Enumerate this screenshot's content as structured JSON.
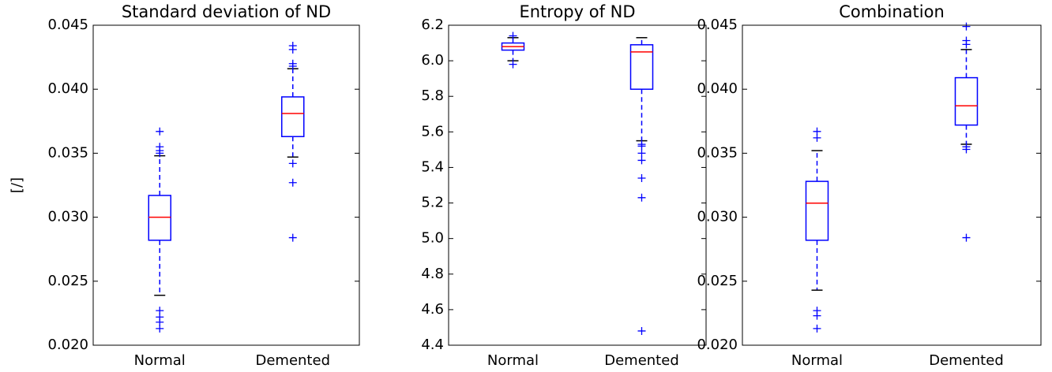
{
  "chart_data": [
    {
      "type": "box",
      "title": "Standard deviation of ND",
      "y_label": "[/]",
      "categories": [
        "Normal",
        "Demented"
      ],
      "ylim": [
        0.02,
        0.045
      ],
      "yticks": [
        {
          "value": 0.02,
          "label": "0.020"
        },
        0.025,
        {
          "value": 0.03,
          "label": "0.030"
        },
        0.035,
        {
          "value": 0.04,
          "label": "0.040"
        },
        0.045
      ],
      "box_color": "#0000ff",
      "median_color": "#ff0000",
      "boxes": [
        {
          "whisker_low": 0.0239,
          "q1": 0.0282,
          "median": 0.03,
          "q3": 0.0317,
          "whisker_high": 0.0348,
          "outliers": [
            0.0367,
            0.0355,
            0.0352,
            0.035,
            0.0227,
            0.0222,
            0.0218,
            0.0213
          ]
        },
        {
          "whisker_low": 0.0347,
          "q1": 0.0363,
          "median": 0.0381,
          "q3": 0.0394,
          "whisker_high": 0.0416,
          "outliers": [
            0.0434,
            0.0431,
            0.042,
            0.0418,
            0.0342,
            0.0327,
            0.0284
          ]
        }
      ]
    },
    {
      "type": "box",
      "title": "Entropy of ND",
      "categories": [
        "Normal",
        "Demented"
      ],
      "ylim": [
        4.4,
        6.2
      ],
      "yticks": [
        4.4,
        4.6,
        4.8,
        {
          "value": 5,
          "label": "5.0"
        },
        5.2,
        5.4,
        5.6,
        5.8,
        {
          "value": 6,
          "label": "6.0"
        },
        6.2
      ],
      "box_color": "#0000ff",
      "median_color": "#ff0000",
      "boxes": [
        {
          "whisker_low": 6.0,
          "q1": 6.06,
          "median": 6.08,
          "q3": 6.1,
          "whisker_high": 6.13,
          "outliers": [
            6.14,
            5.98
          ]
        },
        {
          "whisker_low": 5.55,
          "q1": 5.84,
          "median": 6.05,
          "q3": 6.09,
          "whisker_high": 6.13,
          "outliers": [
            5.53,
            5.52,
            5.48,
            5.44,
            5.34,
            5.23,
            4.48
          ]
        }
      ]
    },
    {
      "type": "box",
      "title": "Combination",
      "categories": [
        "Normal",
        "Demented"
      ],
      "ylim": [
        0.02,
        0.045
      ],
      "yticks": [
        {
          "value": 0.02,
          "label": "0.020"
        },
        0.025,
        {
          "value": 0.03,
          "label": "0.030"
        },
        0.035,
        {
          "value": 0.04,
          "label": "0.040"
        },
        0.045
      ],
      "box_color": "#0000ff",
      "median_color": "#ff0000",
      "boxes": [
        {
          "whisker_low": 0.0243,
          "q1": 0.0282,
          "median": 0.0311,
          "q3": 0.0328,
          "whisker_high": 0.0352,
          "outliers": [
            0.0367,
            0.0362,
            0.0227,
            0.0223,
            0.0213
          ]
        },
        {
          "whisker_low": 0.0357,
          "q1": 0.0372,
          "median": 0.0387,
          "q3": 0.0409,
          "whisker_high": 0.0431,
          "outliers": [
            0.0449,
            0.0438,
            0.0435,
            0.0355,
            0.0353,
            0.0284
          ]
        }
      ]
    }
  ]
}
